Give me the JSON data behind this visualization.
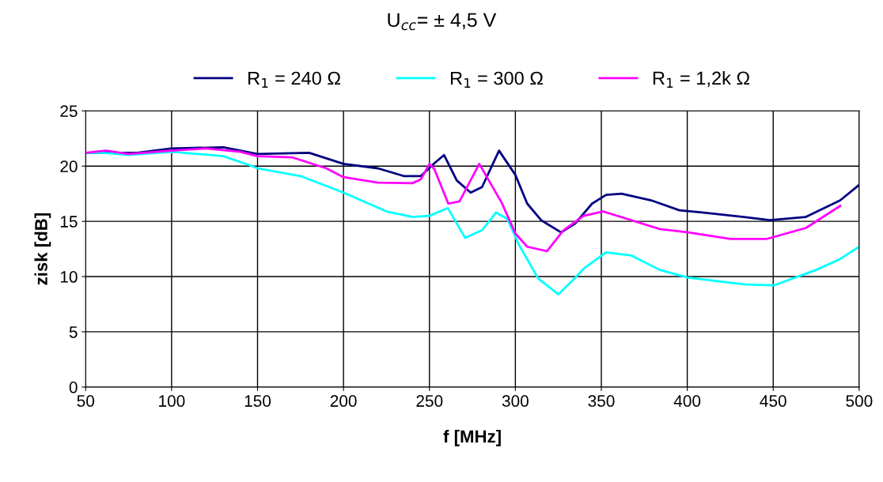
{
  "chart_data": {
    "type": "line",
    "title": "U$_{cc}$= ± 4,5 V",
    "xlabel": "f [MHz]",
    "ylabel": "zisk [dB]",
    "xlim": [
      50,
      500
    ],
    "xticks": [
      50,
      100,
      150,
      200,
      250,
      300,
      350,
      400,
      450,
      500
    ],
    "ylim": [
      0,
      25
    ],
    "yticks": [
      0,
      5,
      10,
      15,
      20,
      25
    ],
    "grid": true,
    "legend": "top",
    "marker": "none",
    "line_style": "solid",
    "series": [
      {
        "name": "R$_{1}$ = 240 Ω",
        "color": "#000080",
        "x": [
          50,
          80,
          100,
          130,
          150,
          180,
          200,
          220,
          235,
          245,
          252.8,
          258.5,
          265.9,
          274,
          280.6,
          290.5,
          300,
          306.9,
          315,
          326.6,
          334.8,
          344.6,
          352.8,
          361.8,
          379,
          395.4,
          408.6,
          433,
          448,
          469,
          489,
          500
        ],
        "values": [
          21.2,
          21.2,
          21.6,
          21.7,
          21.1,
          21.2,
          20.2,
          19.8,
          19.1,
          19.1,
          20.25,
          21.0,
          18.7,
          17.6,
          18.1,
          21.4,
          19.2,
          16.6,
          15.1,
          14.0,
          14.8,
          16.6,
          17.4,
          17.5,
          16.9,
          16.0,
          15.8,
          15.4,
          15.1,
          15.4,
          16.9,
          18.3
        ]
      },
      {
        "name": "R$_{1}$ = 300 Ω",
        "color": "#00ffff",
        "x": [
          50,
          60,
          75,
          100,
          130,
          145,
          150,
          175,
          200,
          225,
          240,
          250,
          260.7,
          270.8,
          280.6,
          288.8,
          295.4,
          302,
          313.4,
          325,
          333,
          339.7,
          352.8,
          367.6,
          384,
          400.7,
          433,
          450.3,
          474.9,
          489,
          500
        ],
        "values": [
          21.2,
          21.2,
          21.0,
          21.3,
          20.9,
          20.1,
          19.8,
          19.1,
          17.6,
          15.9,
          15.4,
          15.5,
          16.2,
          13.5,
          14.2,
          15.8,
          15.2,
          12.9,
          9.8,
          8.4,
          9.6,
          10.7,
          12.2,
          11.9,
          10.6,
          9.9,
          9.3,
          9.2,
          10.6,
          11.6,
          12.7
        ]
      },
      {
        "name": "R$_{1}$ = 1,2k Ω",
        "color": "#ff00ff",
        "x": [
          50,
          62,
          75,
          100,
          120,
          140,
          150,
          170,
          190,
          200,
          220,
          240,
          245,
          250,
          252.8,
          261,
          267.5,
          279,
          292,
          300,
          306.9,
          318.4,
          328,
          339.7,
          351,
          367.6,
          384,
          400.7,
          425,
          446,
          469,
          489
        ],
        "values": [
          21.2,
          21.4,
          21.1,
          21.4,
          21.6,
          21.3,
          20.9,
          20.8,
          19.8,
          19.0,
          18.5,
          18.45,
          18.8,
          20.2,
          19.75,
          16.6,
          16.8,
          20.2,
          16.7,
          13.9,
          12.7,
          12.3,
          14.2,
          15.5,
          15.9,
          15.1,
          14.3,
          14.0,
          13.4,
          13.4,
          14.4,
          16.4
        ]
      }
    ]
  }
}
